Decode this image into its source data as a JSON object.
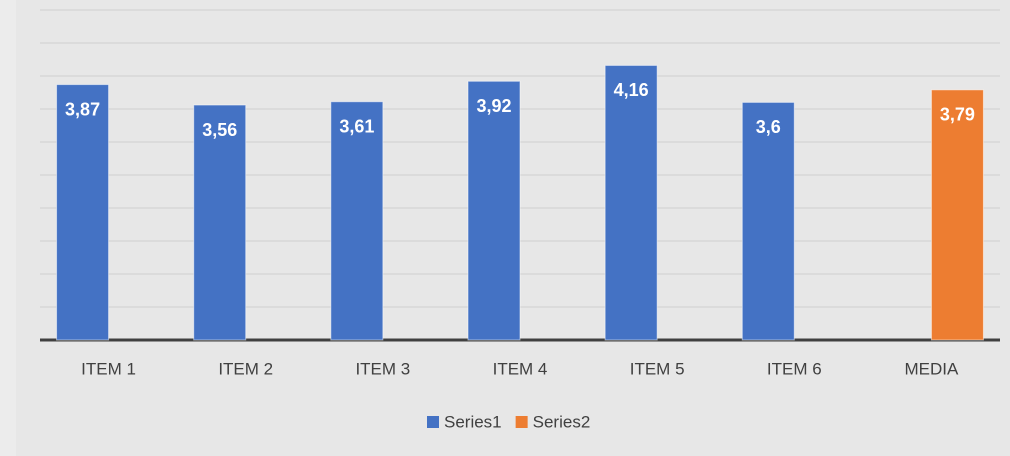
{
  "chart_data": {
    "type": "bar",
    "categories": [
      "ITEM 1",
      "ITEM 2",
      "ITEM 3",
      "ITEM 4",
      "ITEM 5",
      "ITEM 6",
      "MEDIA"
    ],
    "series": [
      {
        "name": "Series1",
        "color": "#4472c4",
        "values": [
          3.87,
          3.56,
          3.61,
          3.92,
          4.16,
          3.6,
          null
        ],
        "value_labels": [
          "3,87",
          "3,56",
          "3,61",
          "3,92",
          "4,16",
          "3,6",
          null
        ]
      },
      {
        "name": "Series2",
        "color": "#ed7d31",
        "values": [
          null,
          null,
          null,
          null,
          null,
          null,
          3.79
        ],
        "value_labels": [
          null,
          null,
          null,
          null,
          null,
          null,
          "3,79"
        ]
      }
    ],
    "ylim": [
      0,
      5
    ],
    "yticks": [
      0,
      0.5,
      1,
      1.5,
      2,
      2.5,
      3,
      3.5,
      4,
      4.5,
      5
    ],
    "grid": true,
    "legend": "bottom"
  }
}
